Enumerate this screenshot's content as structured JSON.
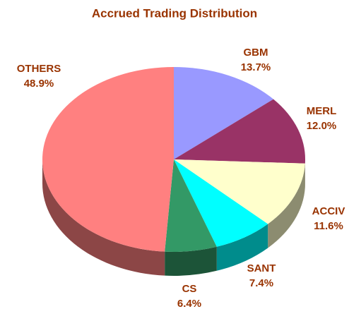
{
  "chart_data": {
    "type": "pie",
    "title": "Accrued Trading Distribution",
    "categories": [
      "GBM",
      "MERL",
      "ACCIV",
      "SANT",
      "CS",
      "OTHERS"
    ],
    "values": [
      13.7,
      12.0,
      11.6,
      7.4,
      6.4,
      48.9
    ],
    "value_labels": [
      "13.7%",
      "12.0%",
      "11.6%",
      "7.4%",
      "6.4%",
      "48.9%"
    ],
    "colors": [
      "#9999ff",
      "#993366",
      "#ffffcc",
      "#00ffff",
      "#339966",
      "#ff8080"
    ]
  }
}
